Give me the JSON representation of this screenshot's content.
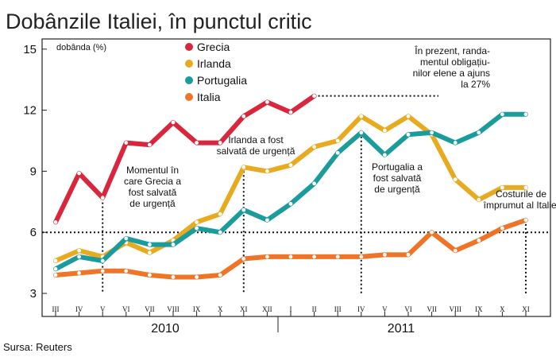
{
  "chart_data": {
    "type": "line",
    "title": "Dobânzile Italiei, în punctul critic",
    "ylabel": "dobânda (%)",
    "ylim": [
      3,
      15
    ],
    "yticks": [
      3,
      6,
      9,
      12,
      15
    ],
    "categories": [
      "III",
      "IV",
      "V",
      "VI",
      "VII",
      "VIII",
      "IX",
      "X",
      "XI",
      "XII",
      "I",
      "II",
      "III",
      "IV",
      "V",
      "VI",
      "VII",
      "VIII",
      "IX",
      "X",
      "XI"
    ],
    "years": [
      {
        "label": "2010"
      },
      {
        "label": "2011"
      }
    ],
    "series": [
      {
        "name": "Grecia",
        "color": "#d9263c",
        "values": [
          6.5,
          8.9,
          7.7,
          10.4,
          10.3,
          11.4,
          10.4,
          10.4,
          11.7,
          12.4,
          11.9,
          12.7,
          null,
          null,
          null,
          null,
          null,
          null,
          null,
          null,
          null
        ]
      },
      {
        "name": "Irlanda",
        "color": "#e8aa1e",
        "values": [
          4.6,
          5.1,
          4.8,
          5.5,
          5.0,
          5.6,
          6.5,
          6.9,
          9.2,
          9.0,
          9.3,
          10.2,
          10.5,
          11.7,
          11.0,
          11.7,
          10.8,
          8.6,
          7.6,
          8.2,
          8.2
        ]
      },
      {
        "name": "Portugalia",
        "color": "#1b9c9c",
        "values": [
          4.2,
          4.8,
          4.6,
          5.7,
          5.4,
          5.4,
          6.2,
          6.0,
          7.1,
          6.6,
          7.4,
          8.4,
          9.9,
          10.9,
          9.8,
          10.8,
          10.9,
          10.4,
          10.9,
          11.8,
          11.8
        ]
      },
      {
        "name": "Italia",
        "color": "#ef7425",
        "values": [
          3.9,
          4.0,
          4.1,
          4.1,
          3.9,
          3.8,
          3.8,
          3.9,
          4.7,
          4.8,
          4.8,
          4.8,
          4.8,
          4.8,
          4.9,
          4.9,
          6.0,
          5.1,
          5.6,
          6.2,
          6.6
        ]
      }
    ],
    "reference_line": {
      "y": 6
    },
    "grid": false,
    "legend_position": "top-center",
    "annotations": [
      {
        "lines": [
          "Momentul în",
          "care Grecia a",
          "fost salvată",
          "de urgență"
        ],
        "category": "V"
      },
      {
        "lines": [
          "Irlanda a fost",
          "salvată de urgență"
        ],
        "category": "XI"
      },
      {
        "lines": [
          "Portugalia a",
          "fost salvată",
          "de urgență"
        ],
        "category": "IV"
      },
      {
        "lines": [
          "Costurile de",
          "împrumut al Italiei"
        ],
        "category": "XI"
      },
      {
        "lines": [
          "În prezent, randa-",
          "mentul obligațiu-",
          "nilor elene a ajuns",
          "la 27%"
        ],
        "category": "II"
      }
    ]
  },
  "source": "Sursa: Reuters"
}
